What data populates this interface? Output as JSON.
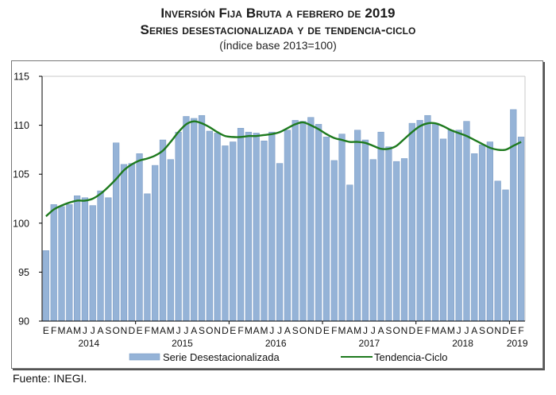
{
  "header": {
    "title_line1": "Inversión Fija Bruta a febrero de 2019",
    "title_line2": "Series desestacionalizada y de tendencia-ciclo",
    "subtitle": "(Índice base 2013=100)"
  },
  "footer": {
    "source": "Fuente: INEGI."
  },
  "colors": {
    "bar_fill": "#95b3d7",
    "bar_stroke": "#7f9fc8",
    "trend_line": "#1e7a1e",
    "axis": "#000000",
    "frame": "#777777"
  },
  "chart_data": {
    "type": "bar",
    "title": "Inversión Fija Bruta a febrero de 2019 — Series desestacionalizada y de tendencia-ciclo",
    "subtitle": "(Índice base 2013=100)",
    "xlabel": "",
    "ylabel": "",
    "ylim": [
      90,
      115
    ],
    "yticks": [
      90,
      95,
      100,
      105,
      110,
      115
    ],
    "grid": false,
    "legend_position": "bottom",
    "month_labels": [
      "E",
      "F",
      "M",
      "A",
      "M",
      "J",
      "J",
      "A",
      "S",
      "O",
      "N",
      "D",
      "E",
      "F",
      "M",
      "A",
      "M",
      "J",
      "J",
      "A",
      "S",
      "O",
      "N",
      "D",
      "E",
      "F",
      "M",
      "A",
      "M",
      "J",
      "J",
      "A",
      "S",
      "O",
      "N",
      "D",
      "E",
      "F",
      "M",
      "A",
      "M",
      "J",
      "J",
      "A",
      "S",
      "O",
      "N",
      "D",
      "E",
      "F",
      "M",
      "A",
      "M",
      "J",
      "J",
      "A",
      "S",
      "O",
      "N",
      "D",
      "E",
      "F"
    ],
    "year_labels": [
      {
        "label": "2014",
        "start_index": 0
      },
      {
        "label": "2015",
        "start_index": 12
      },
      {
        "label": "2016",
        "start_index": 24
      },
      {
        "label": "2017",
        "start_index": 36
      },
      {
        "label": "2018",
        "start_index": 48
      },
      {
        "label": "2019",
        "start_index": 60
      }
    ],
    "series": [
      {
        "name": "Serie Desestacionalizada",
        "type": "bar",
        "values": [
          97.2,
          101.9,
          101.7,
          101.9,
          102.8,
          102.6,
          101.8,
          103.3,
          102.6,
          108.2,
          106.0,
          106.1,
          107.1,
          103.0,
          105.9,
          108.5,
          106.5,
          109.3,
          110.9,
          110.7,
          111.0,
          109.4,
          109.2,
          107.9,
          108.3,
          109.7,
          109.3,
          109.2,
          108.4,
          109.3,
          106.1,
          109.5,
          110.5,
          110.4,
          110.8,
          110.1,
          108.8,
          106.4,
          109.1,
          103.9,
          109.5,
          108.5,
          106.5,
          109.3,
          107.8,
          106.3,
          106.6,
          110.2,
          110.5,
          111.0,
          110.2,
          108.6,
          109.5,
          109.5,
          110.4,
          107.1,
          108.0,
          108.3,
          104.3,
          103.4,
          111.6,
          108.8
        ]
      },
      {
        "name": "Tendencia-Ciclo",
        "type": "line",
        "values": [
          100.7,
          101.4,
          101.8,
          102.1,
          102.3,
          102.3,
          102.5,
          103.0,
          103.7,
          104.5,
          105.4,
          106.0,
          106.4,
          106.6,
          106.9,
          107.4,
          108.3,
          109.3,
          110.1,
          110.4,
          110.2,
          109.8,
          109.3,
          108.9,
          108.8,
          108.8,
          108.9,
          108.9,
          109.0,
          109.1,
          109.3,
          109.7,
          110.1,
          110.3,
          110.0,
          109.6,
          109.1,
          108.7,
          108.5,
          108.3,
          108.3,
          108.2,
          107.9,
          107.6,
          107.6,
          107.9,
          108.6,
          109.3,
          109.9,
          110.2,
          110.2,
          109.9,
          109.5,
          109.2,
          108.9,
          108.5,
          108.1,
          107.7,
          107.5,
          107.5,
          107.9,
          108.3
        ]
      }
    ],
    "legend": [
      "Serie Desestacionalizada",
      "Tendencia-Ciclo"
    ]
  }
}
